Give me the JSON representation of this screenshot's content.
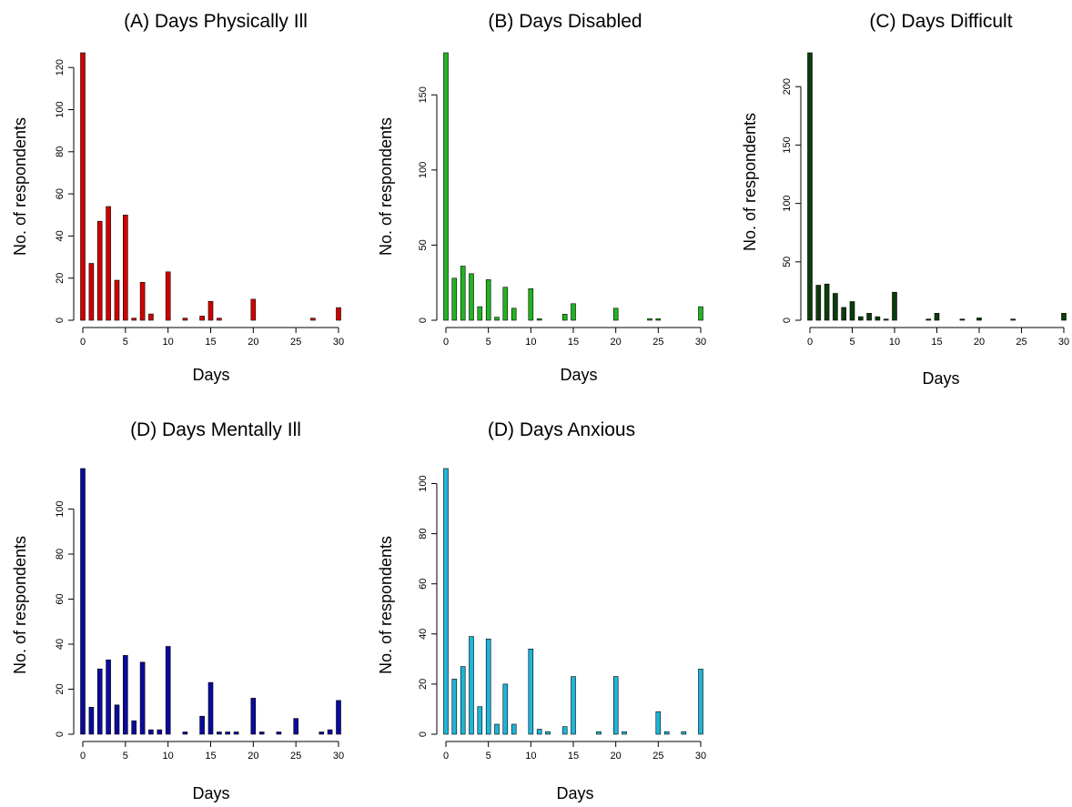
{
  "figure": {
    "panels": [
      {
        "title": "(A) Days Physically Ill",
        "xlabel": "Days",
        "ylabel": "No. of respondents",
        "bar_color": "#d10000"
      },
      {
        "title": "(B) Days Disabled",
        "xlabel": "Days",
        "ylabel": "No. of respondents",
        "bar_color": "#22b422"
      },
      {
        "title": "(C) Days Difficult",
        "xlabel": "Days",
        "ylabel": "No. of respondents",
        "bar_color": "#0b3d0b"
      },
      {
        "title": "(D) Days Mentally Ill",
        "xlabel": "Days",
        "ylabel": "No. of respondents",
        "bar_color": "#0a0a9e"
      },
      {
        "title": "(D) Days Anxious",
        "xlabel": "Days",
        "ylabel": "No. of respondents",
        "bar_color": "#1eb5d9"
      }
    ]
  },
  "chart_data": [
    {
      "type": "bar",
      "title": "(A) Days Physically Ill",
      "xlabel": "Days",
      "ylabel": "No. of respondents",
      "xlim": [
        0,
        30
      ],
      "ylim": [
        0,
        127
      ],
      "xticks": [
        0,
        5,
        10,
        15,
        20,
        25,
        30
      ],
      "yticks": [
        0,
        20,
        40,
        60,
        80,
        100,
        120
      ],
      "x": [
        0,
        1,
        2,
        3,
        4,
        5,
        6,
        7,
        8,
        10,
        12,
        14,
        15,
        16,
        20,
        27,
        30
      ],
      "values": [
        127,
        27,
        47,
        54,
        19,
        50,
        1,
        18,
        3,
        23,
        1,
        2,
        9,
        1,
        10,
        1,
        6
      ],
      "grid": false,
      "color": "#d10000"
    },
    {
      "type": "bar",
      "title": "(B) Days Disabled",
      "xlabel": "Days",
      "ylabel": "No. of respondents",
      "xlim": [
        0,
        30
      ],
      "ylim": [
        0,
        178
      ],
      "xticks": [
        0,
        5,
        10,
        15,
        20,
        25,
        30
      ],
      "yticks": [
        0,
        50,
        100,
        150
      ],
      "x": [
        0,
        1,
        2,
        3,
        4,
        5,
        6,
        7,
        8,
        10,
        11,
        14,
        15,
        20,
        24,
        25,
        30
      ],
      "values": [
        178,
        28,
        36,
        31,
        9,
        27,
        2,
        22,
        8,
        21,
        1,
        4,
        11,
        8,
        1,
        1,
        9
      ],
      "grid": false,
      "color": "#22b422"
    },
    {
      "type": "bar",
      "title": "(C) Days Difficult",
      "xlabel": "Days",
      "ylabel": "No. of respondents",
      "xlim": [
        0,
        30
      ],
      "ylim": [
        0,
        229
      ],
      "xticks": [
        0,
        5,
        10,
        15,
        20,
        25,
        30
      ],
      "yticks": [
        0,
        50,
        100,
        150,
        200
      ],
      "x": [
        0,
        1,
        2,
        3,
        4,
        5,
        6,
        7,
        8,
        9,
        10,
        14,
        15,
        18,
        20,
        24,
        30
      ],
      "values": [
        229,
        30,
        31,
        23,
        11,
        16,
        3,
        6,
        3,
        1,
        24,
        1,
        6,
        1,
        2,
        1,
        6
      ],
      "grid": false,
      "color": "#0b3d0b"
    },
    {
      "type": "bar",
      "title": "(D) Days Mentally Ill",
      "xlabel": "Days",
      "ylabel": "No. of respondents",
      "xlim": [
        0,
        30
      ],
      "ylim": [
        0,
        118
      ],
      "xticks": [
        0,
        5,
        10,
        15,
        20,
        25,
        30
      ],
      "yticks": [
        0,
        20,
        40,
        60,
        80,
        100,
        120
      ],
      "x": [
        0,
        1,
        2,
        3,
        4,
        5,
        6,
        7,
        8,
        9,
        10,
        12,
        14,
        15,
        16,
        17,
        18,
        20,
        21,
        23,
        25,
        28,
        29,
        30
      ],
      "values": [
        118,
        12,
        29,
        33,
        13,
        35,
        6,
        32,
        2,
        2,
        39,
        1,
        8,
        23,
        1,
        1,
        1,
        16,
        1,
        1,
        7,
        1,
        2,
        15
      ],
      "grid": false,
      "color": "#0a0a9e"
    },
    {
      "type": "bar",
      "title": "(D) Days Anxious",
      "xlabel": "Days",
      "ylabel": "No. of respondents",
      "xlim": [
        0,
        30
      ],
      "ylim": [
        0,
        106
      ],
      "xticks": [
        0,
        5,
        10,
        15,
        20,
        25,
        30
      ],
      "yticks": [
        0,
        20,
        40,
        60,
        80,
        100
      ],
      "x": [
        0,
        1,
        2,
        3,
        4,
        5,
        6,
        7,
        8,
        10,
        11,
        12,
        14,
        15,
        18,
        20,
        21,
        25,
        26,
        28,
        30
      ],
      "values": [
        106,
        22,
        27,
        39,
        11,
        38,
        4,
        20,
        4,
        34,
        2,
        1,
        3,
        23,
        1,
        23,
        1,
        9,
        1,
        1,
        26
      ],
      "grid": false,
      "color": "#1eb5d9"
    }
  ]
}
